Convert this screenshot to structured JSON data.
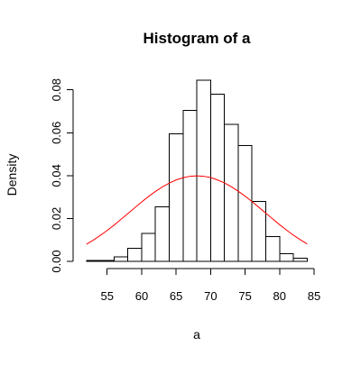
{
  "chart_data": {
    "type": "bar",
    "title": "Histogram of a",
    "xlabel": "a",
    "ylabel": "Density",
    "xlim": [
      51.5,
      85
    ],
    "ylim": [
      0,
      0.0845
    ],
    "x_ticks": [
      55,
      60,
      65,
      70,
      75,
      80,
      85
    ],
    "x_tick_labels": [
      "55",
      "60",
      "65",
      "70",
      "75",
      "80",
      "85"
    ],
    "y_ticks": [
      0,
      0.02,
      0.04,
      0.06,
      0.08
    ],
    "y_tick_labels": [
      "0.00",
      "0.02",
      "0.04",
      "0.06",
      "0.08"
    ],
    "grid": false,
    "legend": "none",
    "bins": [
      {
        "x0": 52,
        "x1": 54,
        "density": 0.0005
      },
      {
        "x0": 54,
        "x1": 56,
        "density": 0.0005
      },
      {
        "x0": 56,
        "x1": 58,
        "density": 0.002
      },
      {
        "x0": 58,
        "x1": 60,
        "density": 0.006
      },
      {
        "x0": 60,
        "x1": 62,
        "density": 0.013
      },
      {
        "x0": 62,
        "x1": 64,
        "density": 0.0255
      },
      {
        "x0": 64,
        "x1": 66,
        "density": 0.0595
      },
      {
        "x0": 66,
        "x1": 68,
        "density": 0.0705
      },
      {
        "x0": 68,
        "x1": 70,
        "density": 0.0845
      },
      {
        "x0": 70,
        "x1": 72,
        "density": 0.078
      },
      {
        "x0": 72,
        "x1": 74,
        "density": 0.064
      },
      {
        "x0": 74,
        "x1": 76,
        "density": 0.054
      },
      {
        "x0": 76,
        "x1": 78,
        "density": 0.028
      },
      {
        "x0": 78,
        "x1": 80,
        "density": 0.0115
      },
      {
        "x0": 80,
        "x1": 82,
        "density": 0.0035
      },
      {
        "x0": 82,
        "x1": 84,
        "density": 0.0015
      }
    ],
    "series": [
      {
        "type": "line",
        "color": "#ff0000",
        "x": [
          52,
          53,
          54,
          55,
          56,
          57,
          58,
          59,
          60,
          61,
          62,
          63,
          64,
          65,
          66,
          67,
          68,
          69,
          70,
          71,
          72,
          73,
          74,
          75,
          76,
          77,
          78,
          79,
          80,
          81,
          82,
          83,
          84
        ],
        "values": [
          0.008,
          0.0099,
          0.0121,
          0.0144,
          0.0169,
          0.0196,
          0.0223,
          0.025,
          0.0277,
          0.0303,
          0.0326,
          0.0347,
          0.0365,
          0.038,
          0.039,
          0.0397,
          0.0399,
          0.0397,
          0.0391,
          0.038,
          0.0366,
          0.0348,
          0.0327,
          0.0304,
          0.0279,
          0.0252,
          0.0225,
          0.0198,
          0.0171,
          0.0146,
          0.0122,
          0.0101,
          0.0081
        ]
      }
    ],
    "bar_fill": "#ffffff",
    "bar_stroke": "#000000",
    "axis_color": "#000000"
  }
}
